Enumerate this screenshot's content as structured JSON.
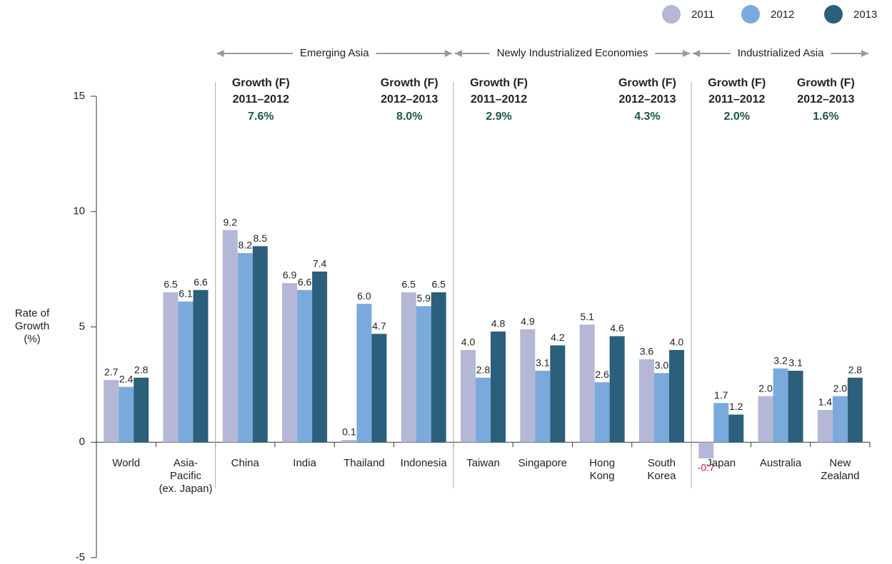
{
  "chart_data": {
    "type": "bar",
    "ylabel": [
      "Rate of",
      "Growth",
      "(%)"
    ],
    "categories": [
      "World",
      "Asia-\nPacific\n(ex. Japan)",
      "China",
      "India",
      "Thailand",
      "Indonesia",
      "Taiwan",
      "Singapore",
      "Hong\nKong",
      "South\nKorea",
      "Japan",
      "Australia",
      "New\nZealand"
    ],
    "series": [
      {
        "name": "2011",
        "color": "#b4b8d6",
        "values": [
          2.7,
          6.5,
          9.2,
          6.9,
          0.1,
          6.5,
          4.0,
          4.9,
          5.1,
          3.6,
          -0.7,
          2.0,
          1.4
        ],
        "value_labels": [
          "2.7",
          "6.5",
          "9.2",
          "6.9",
          "0.1",
          "6.5",
          "4.0",
          "4.9",
          "5.1",
          "3.6",
          "-0.7",
          "2.0",
          "1.4"
        ]
      },
      {
        "name": "2012",
        "color": "#7aaadb",
        "values": [
          2.4,
          6.1,
          8.2,
          6.6,
          6.0,
          5.9,
          2.8,
          3.1,
          2.6,
          3.0,
          1.7,
          3.2,
          2.0
        ],
        "value_labels": [
          "2.4",
          "6.1",
          "8.2",
          "6.6",
          "6.0",
          "5.9",
          "2.8",
          "3.1",
          "2.6",
          "3.0",
          "1.7",
          "3.2",
          "2.0"
        ]
      },
      {
        "name": "2013",
        "color": "#2b5f7c",
        "values": [
          2.8,
          6.6,
          8.5,
          7.4,
          4.7,
          6.5,
          4.8,
          4.2,
          4.6,
          4.0,
          1.2,
          3.1,
          2.8
        ],
        "value_labels": [
          "2.8",
          "6.6",
          "8.5",
          "7.4",
          "4.7",
          "6.5",
          "4.8",
          "4.2",
          "4.6",
          "4.0",
          "1.2",
          "3.1",
          "2.8"
        ]
      }
    ],
    "ylim": [
      -5,
      15
    ],
    "yticks": [
      -5,
      0,
      5,
      10,
      15
    ],
    "grid": false,
    "legend": "top-right",
    "groups": [
      {
        "name": "Emerging Asia",
        "forecasts": [
          {
            "label": "Growth (F)",
            "period": "2011–2012",
            "growth": {
              "value": 7.6,
              "label": "7.6%"
            }
          },
          {
            "label": "Growth (F)",
            "period": "2012–2013",
            "growth": {
              "value": 8.0,
              "label": "8.0%"
            }
          }
        ]
      },
      {
        "name": "Newly Industrialized Economies",
        "forecasts": [
          {
            "label": "Growth (F)",
            "period": "2011–2012",
            "growth": {
              "value": 2.9,
              "label": "2.9%"
            }
          },
          {
            "label": "Growth (F)",
            "period": "2012–2013",
            "growth": {
              "value": 4.3,
              "label": "4.3%"
            }
          }
        ]
      },
      {
        "name": "Industrialized Asia",
        "forecasts": [
          {
            "label": "Growth (F)",
            "period": "2011–2012",
            "growth": {
              "value": 2.0,
              "label": "2.0%"
            }
          },
          {
            "label": "Growth (F)",
            "period": "2012–2013",
            "growth": {
              "value": 1.6,
              "label": "1.6%"
            }
          }
        ]
      }
    ]
  }
}
